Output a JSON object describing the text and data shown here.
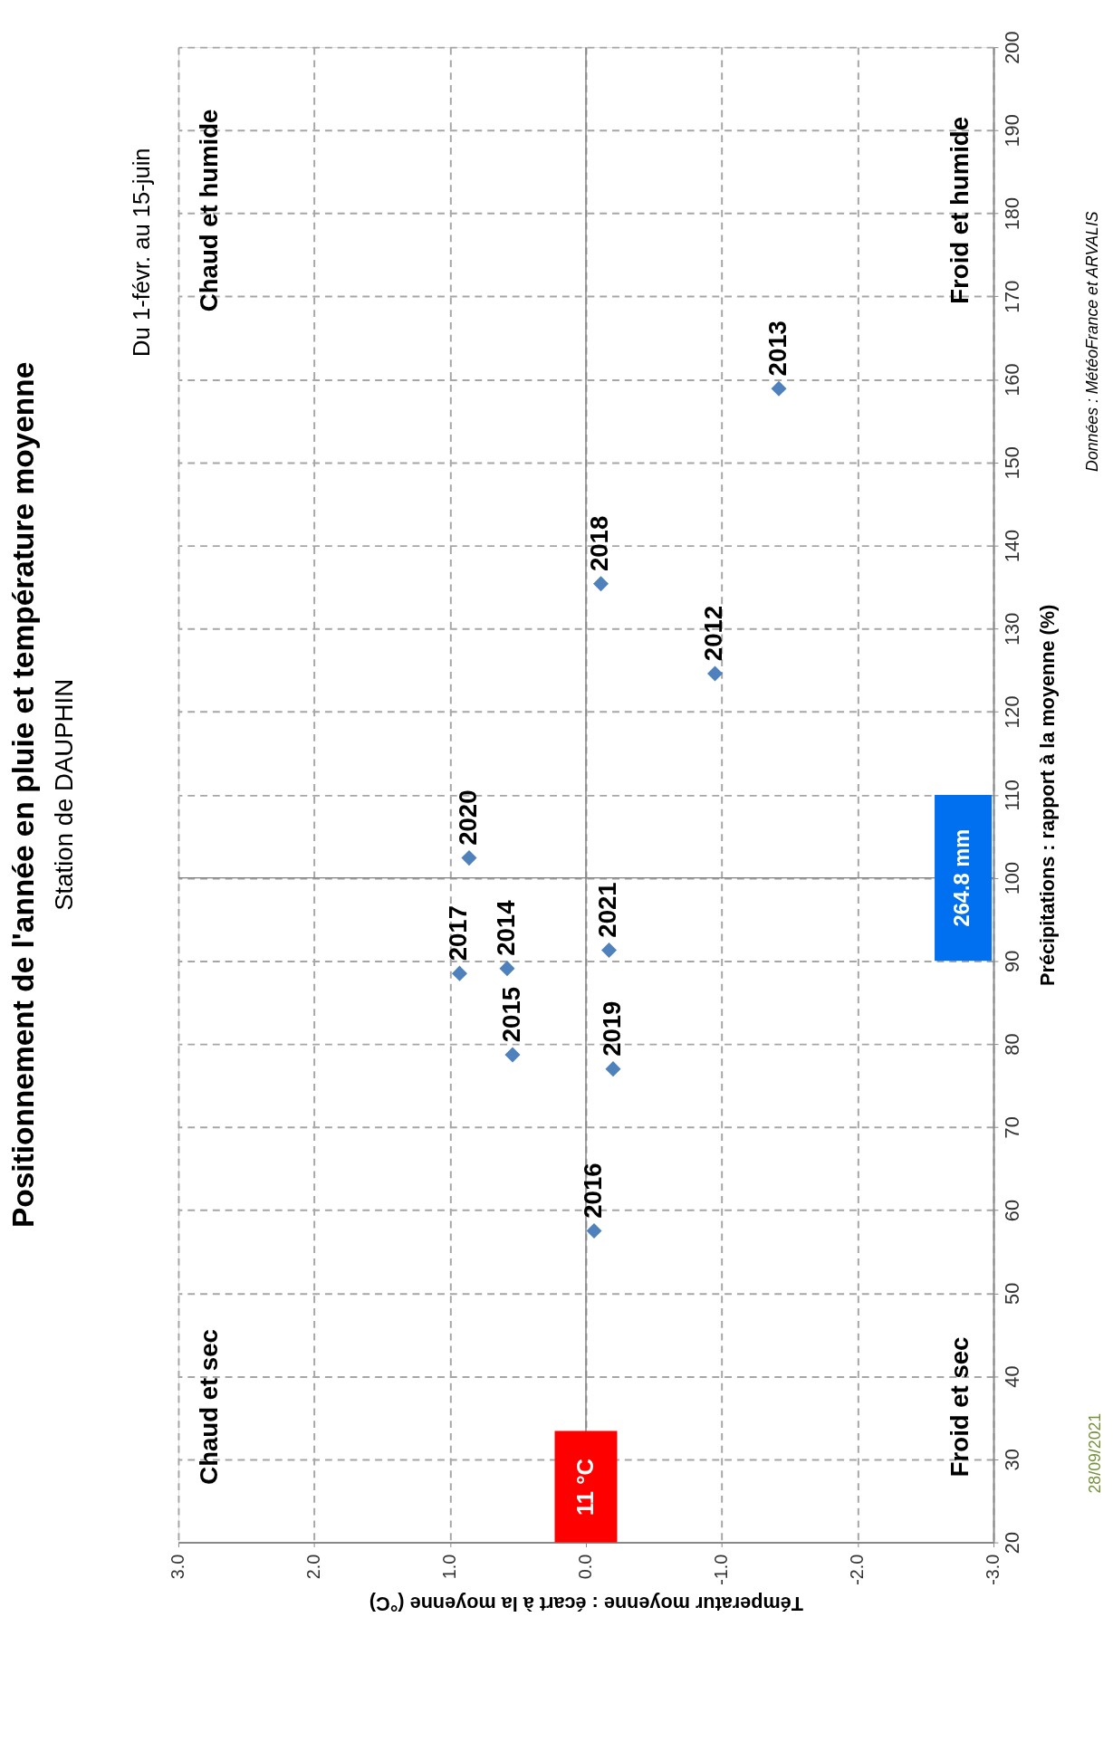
{
  "chart_data": {
    "type": "scatter",
    "title": "Positionnement de l'année en pluie et température moyenne",
    "subtitle": "Station de DAUPHIN",
    "xlabel": "Témperatur moyenne : écart à la moyenne (°C)",
    "ylabel": "Précipitations : rapport à la moyenne (%)",
    "xlim": [
      3,
      -3
    ],
    "xticks": [
      {
        "value": 3,
        "label": "3.0"
      },
      {
        "value": 2,
        "label": "2.0"
      },
      {
        "value": 1,
        "label": "1.0"
      },
      {
        "value": 0,
        "label": "0.0"
      },
      {
        "value": -1,
        "label": "-1.0"
      },
      {
        "value": -2,
        "label": "-2.0"
      },
      {
        "value": -3,
        "label": "-3.0"
      }
    ],
    "ylim": [
      20,
      200
    ],
    "yticks": [
      20,
      30,
      40,
      50,
      60,
      70,
      80,
      90,
      100,
      110,
      120,
      130,
      140,
      150,
      160,
      170,
      180,
      190,
      200
    ],
    "grid": true,
    "marker": "diamond",
    "series": [
      {
        "color": "#4f81bd",
        "x": [
          -0.06,
          -0.2,
          -0.17,
          0.54,
          0.58,
          0.93,
          0.86,
          -0.11,
          -0.95,
          -1.42
        ],
        "values": [
          57.5,
          77.0,
          91.3,
          78.7,
          89.1,
          88.5,
          102.4,
          135.4,
          124.6,
          158.9
        ]
      }
    ],
    "ref_lines": [
      {
        "axis": "x",
        "value": 0,
        "label": "11 °C",
        "color": "#ff0000"
      },
      {
        "axis": "y",
        "value": 100,
        "label": "264.8 mm",
        "color": "#0070f0"
      }
    ],
    "annotations": [
      "Du 1-févr.  au   15-juin",
      "Chaud et humide",
      "Chaud et sec",
      "Froid et humide",
      "Froid et sec",
      "Données : MétéoFrance et ARVALIS",
      "28/09/2021",
      {
        "text": "2016",
        "x": -0.06,
        "y": 57.5
      },
      {
        "text": "2019",
        "x": -0.2,
        "y": 77.0
      },
      {
        "text": "2021",
        "x": -0.17,
        "y": 91.3
      },
      {
        "text": "2015",
        "x": 0.54,
        "y": 78.7
      },
      {
        "text": "2014",
        "x": 0.58,
        "y": 89.1
      },
      {
        "text": "2017",
        "x": 0.93,
        "y": 88.5
      },
      {
        "text": "2020",
        "x": 0.86,
        "y": 102.4
      },
      {
        "text": "2018",
        "x": -0.11,
        "y": 135.4
      },
      {
        "text": "2012",
        "x": -0.95,
        "y": 124.6
      },
      {
        "text": "2013",
        "x": -1.42,
        "y": 158.9
      }
    ]
  }
}
